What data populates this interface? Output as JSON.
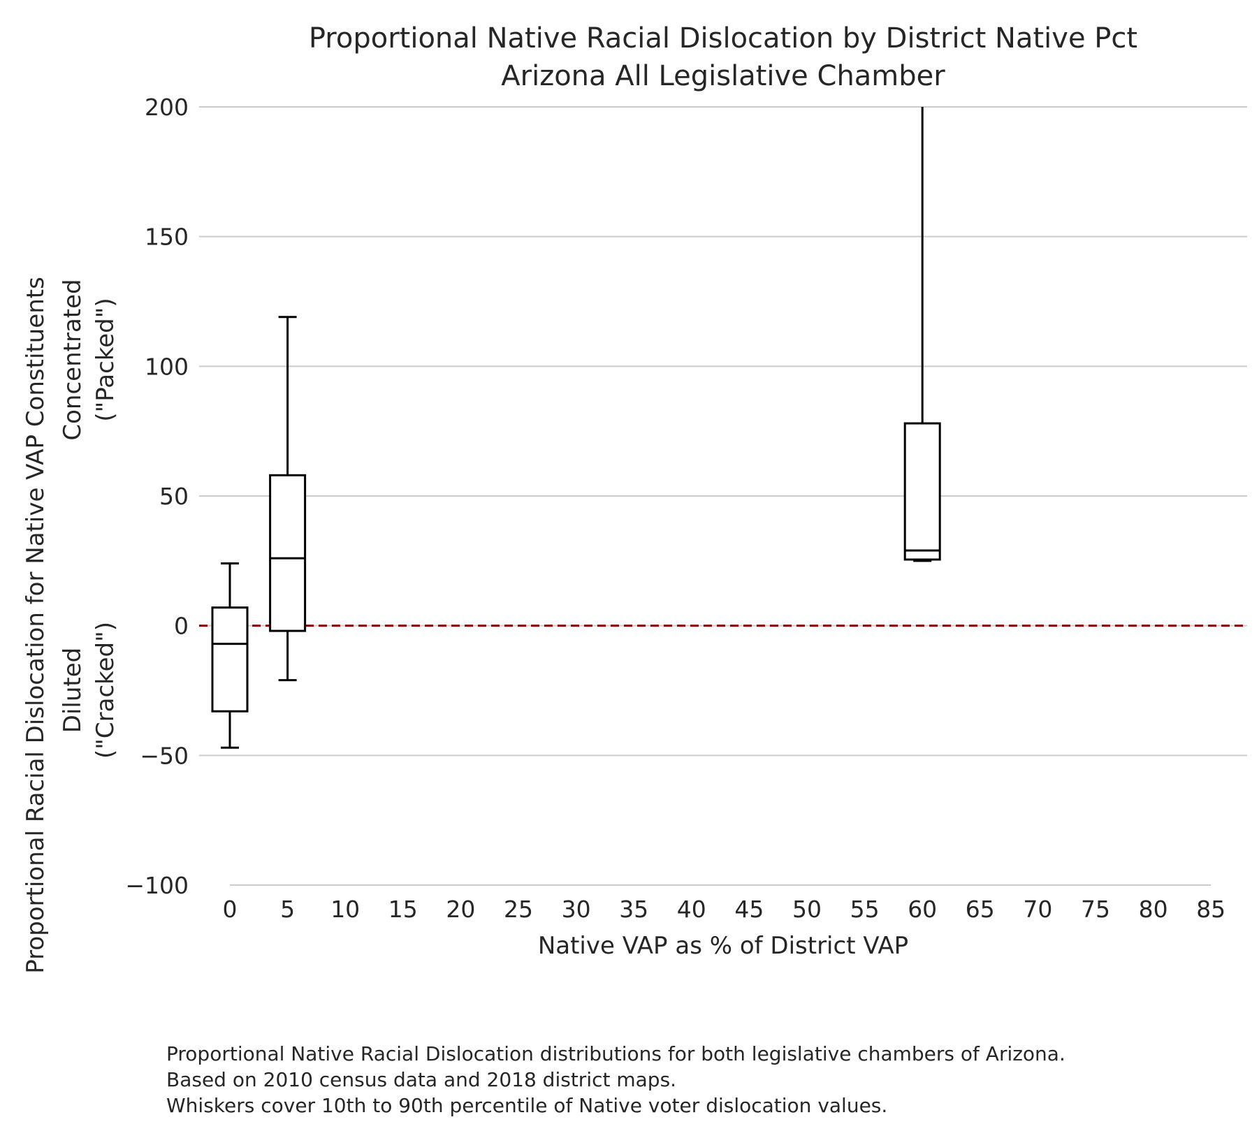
{
  "chart_data": {
    "type": "box",
    "title": [
      "Proportional Native Racial Dislocation by District Native Pct",
      "Arizona All Legislative Chamber"
    ],
    "xlabel": "Native VAP as % of District VAP",
    "ylabel": [
      "Proportional Racial Dislocation for Native VAP Constituents",
      "Concentrated",
      "(\"Packed\")",
      "Diluted",
      "(\"Cracked\")"
    ],
    "xlim": [
      0,
      85
    ],
    "ylim": [
      -100,
      200
    ],
    "xticks": [
      "0",
      "5",
      "10",
      "15",
      "20",
      "25",
      "30",
      "35",
      "40",
      "45",
      "50",
      "55",
      "60",
      "65",
      "70",
      "75",
      "80",
      "85"
    ],
    "yticks": [
      "200",
      "150",
      "100",
      "50",
      "0",
      "−50",
      "−100"
    ],
    "ytick_values": [
      200,
      150,
      100,
      50,
      0,
      -50,
      -100
    ],
    "grid": "horizontal",
    "reference_line": {
      "y": 0,
      "style": "dashed",
      "color": "#8b0000"
    },
    "boxes": [
      {
        "x": 0,
        "whisker_low": -47,
        "q1": -33,
        "median": -7,
        "q3": 7,
        "whisker_high": 24
      },
      {
        "x": 5,
        "whisker_low": -21,
        "q1": -2,
        "median": 26,
        "q3": 58,
        "whisker_high": 119
      },
      {
        "x": 60,
        "whisker_low": 25,
        "q1": 25.5,
        "median": 29,
        "q3": 78,
        "whisker_high": 200
      }
    ]
  },
  "caption": [
    "Proportional Native Racial Dislocation distributions for both legislative chambers of Arizona.",
    "Based on 2010 census data and 2018 district maps.",
    "Whiskers cover 10th to 90th percentile of Native voter dislocation values."
  ]
}
